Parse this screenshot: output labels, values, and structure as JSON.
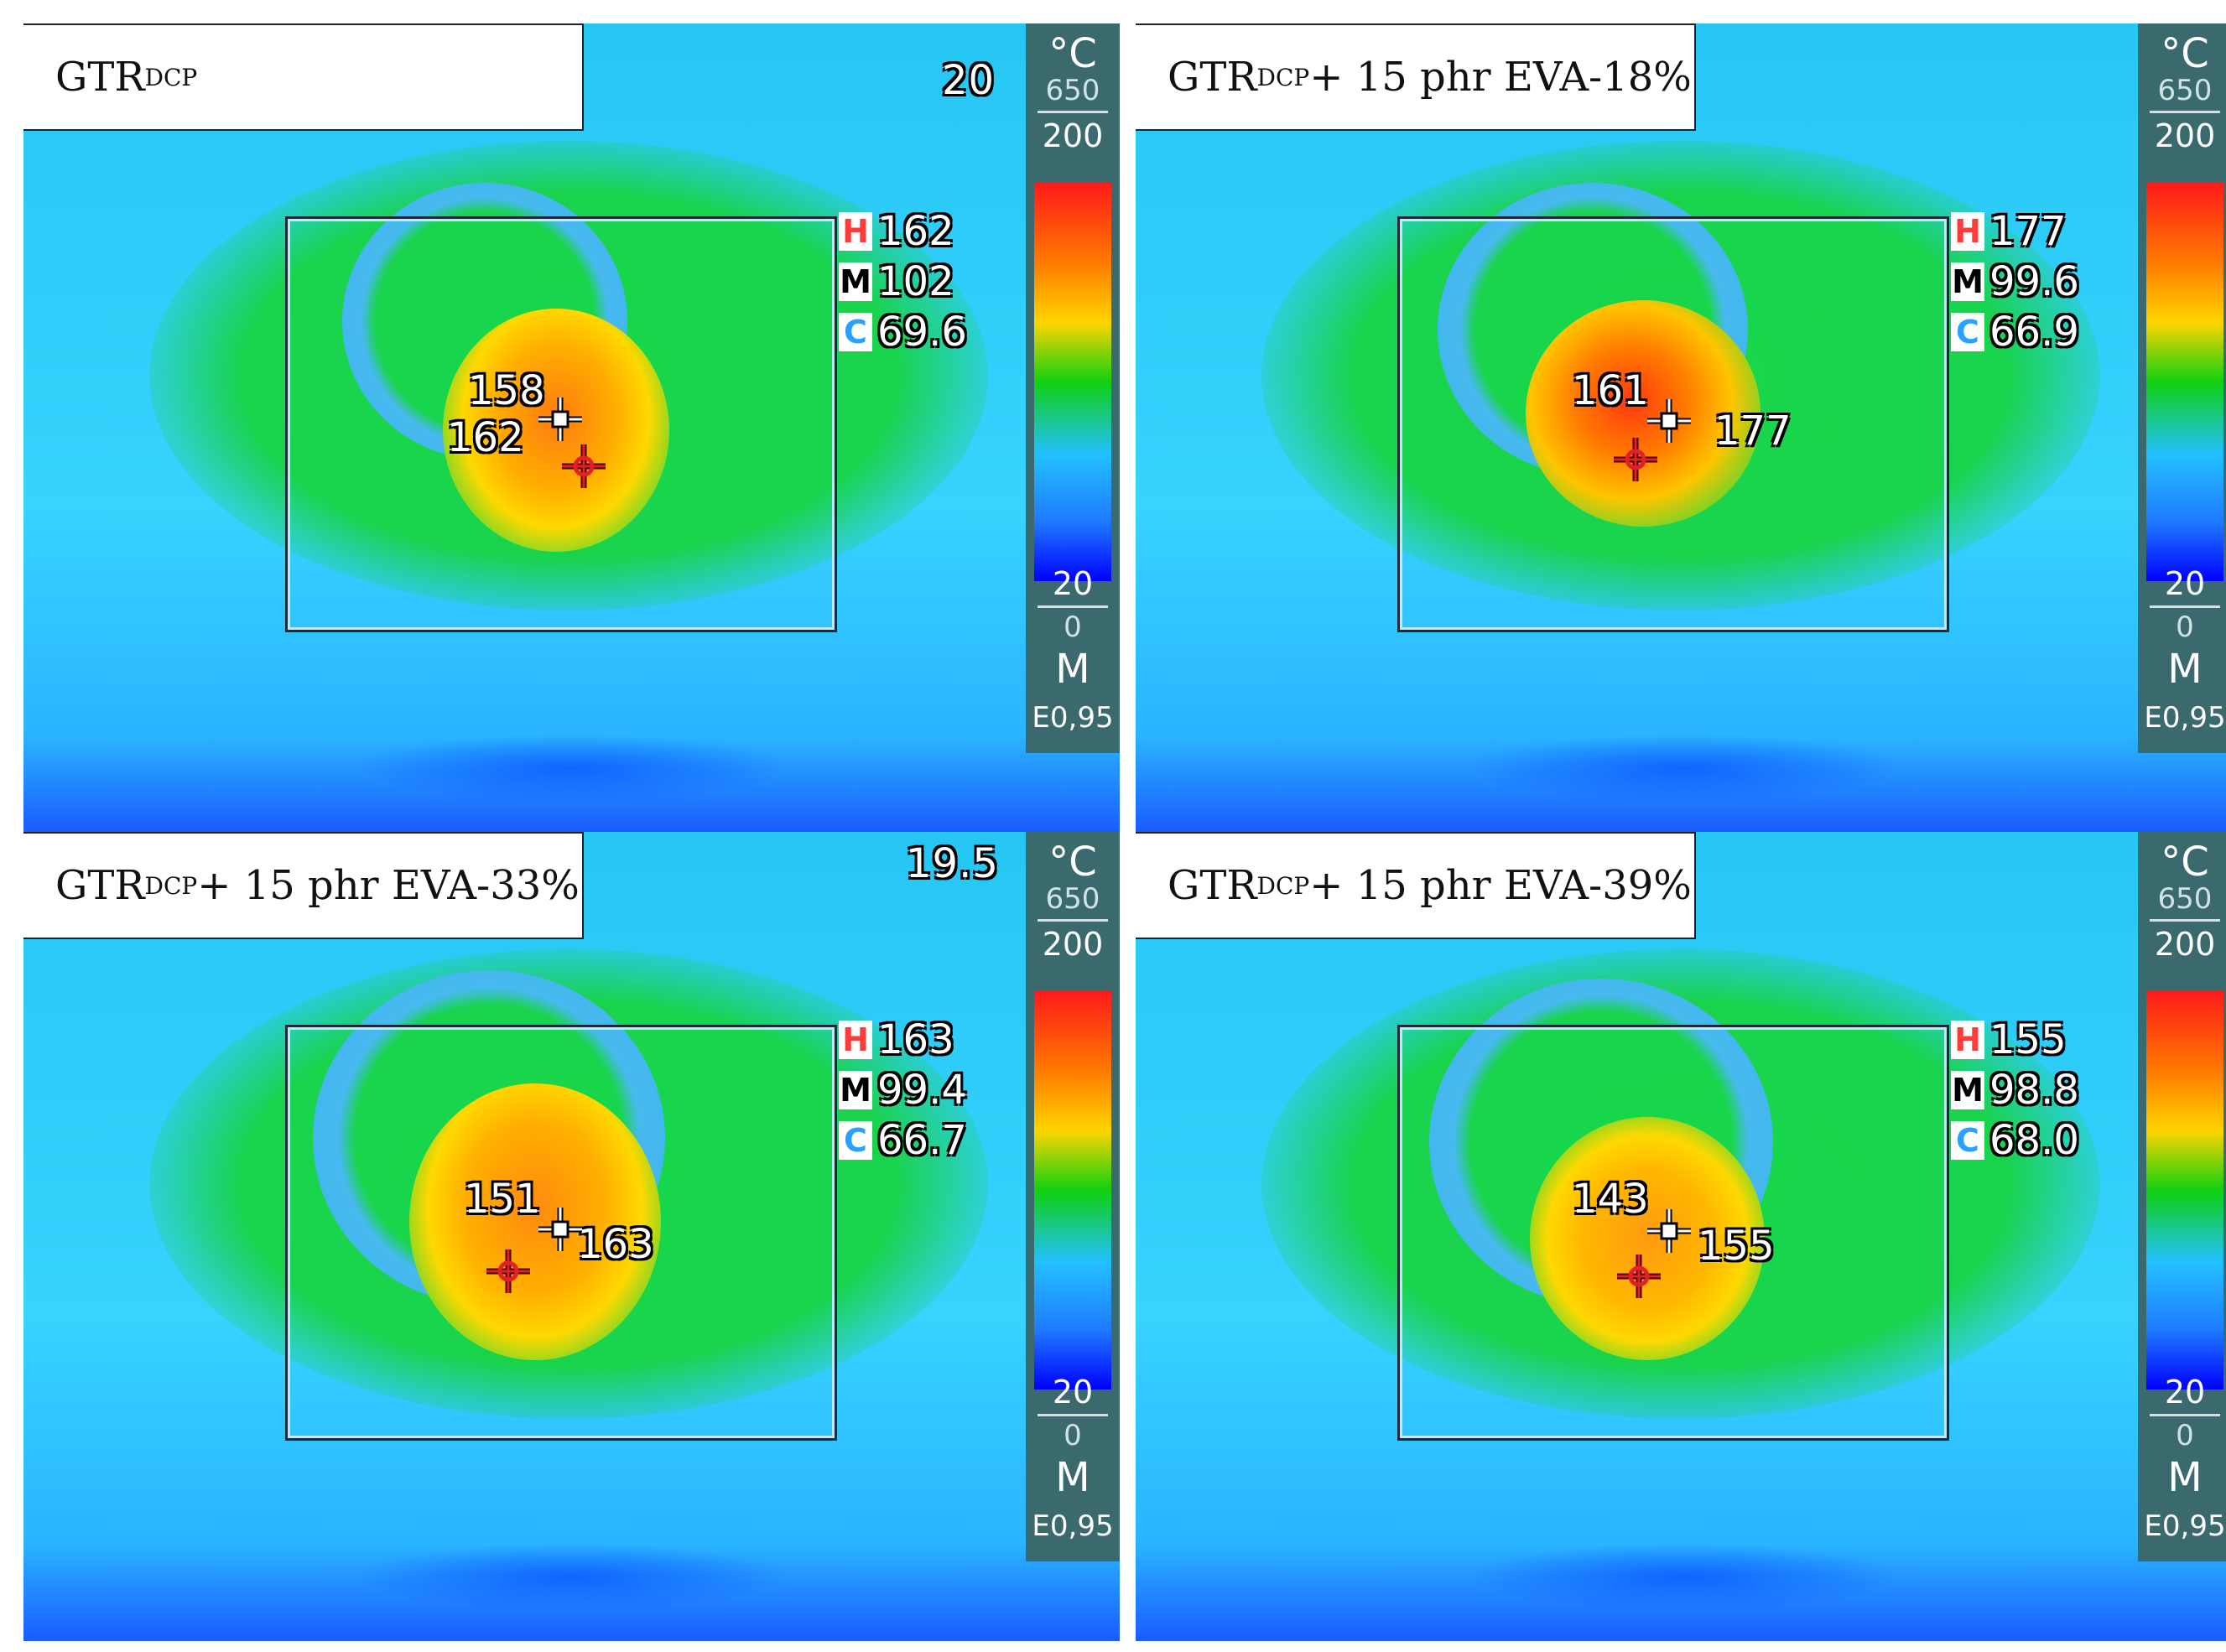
{
  "panels": [
    {
      "label": {
        "main": "GTR",
        "sub": "DCP",
        "rest": ""
      },
      "corner_readout": "20",
      "scale": {
        "unit": "°C",
        "range_max": "650",
        "top": "200",
        "bottom": "20",
        "range_min": "0",
        "mode": "M",
        "emissivity": "E0,95"
      },
      "stats": {
        "h": "162",
        "m": "102",
        "c": "69.6"
      },
      "spot_a": "158",
      "spot_b": "162"
    },
    {
      "label": {
        "main": "GTR",
        "sub": "DCP",
        "rest": " + 15 phr EVA-18%"
      },
      "corner_readout": "",
      "scale": {
        "unit": "°C",
        "range_max": "650",
        "top": "200",
        "bottom": "20",
        "range_min": "0",
        "mode": "M",
        "emissivity": "E0,95"
      },
      "stats": {
        "h": "177",
        "m": "99.6",
        "c": "66.9"
      },
      "spot_a": "161",
      "spot_b": "177"
    },
    {
      "label": {
        "main": "GTR",
        "sub": "DCP",
        "rest": " + 15 phr EVA-33%"
      },
      "corner_readout": "19.5",
      "scale": {
        "unit": "°C",
        "range_max": "650",
        "top": "200",
        "bottom": "20",
        "range_min": "0",
        "mode": "M",
        "emissivity": "E0,95"
      },
      "stats": {
        "h": "163",
        "m": "99.4",
        "c": "66.7"
      },
      "spot_a": "151",
      "spot_b": "163"
    },
    {
      "label": {
        "main": "GTR",
        "sub": "DCP",
        "rest": " + 15 phr EVA-39%"
      },
      "corner_readout": "",
      "scale": {
        "unit": "°C",
        "range_max": "650",
        "top": "200",
        "bottom": "20",
        "range_min": "0",
        "mode": "M",
        "emissivity": "E0,95"
      },
      "stats": {
        "h": "155",
        "m": "98.8",
        "c": "68.0"
      },
      "spot_a": "143",
      "spot_b": "155"
    }
  ],
  "stat_tags": {
    "h": "H",
    "m": "M",
    "c": "C"
  },
  "icons": {
    "hot_marker": "crosshair-red-icon",
    "cursor_marker": "crosshair-white-icon"
  }
}
